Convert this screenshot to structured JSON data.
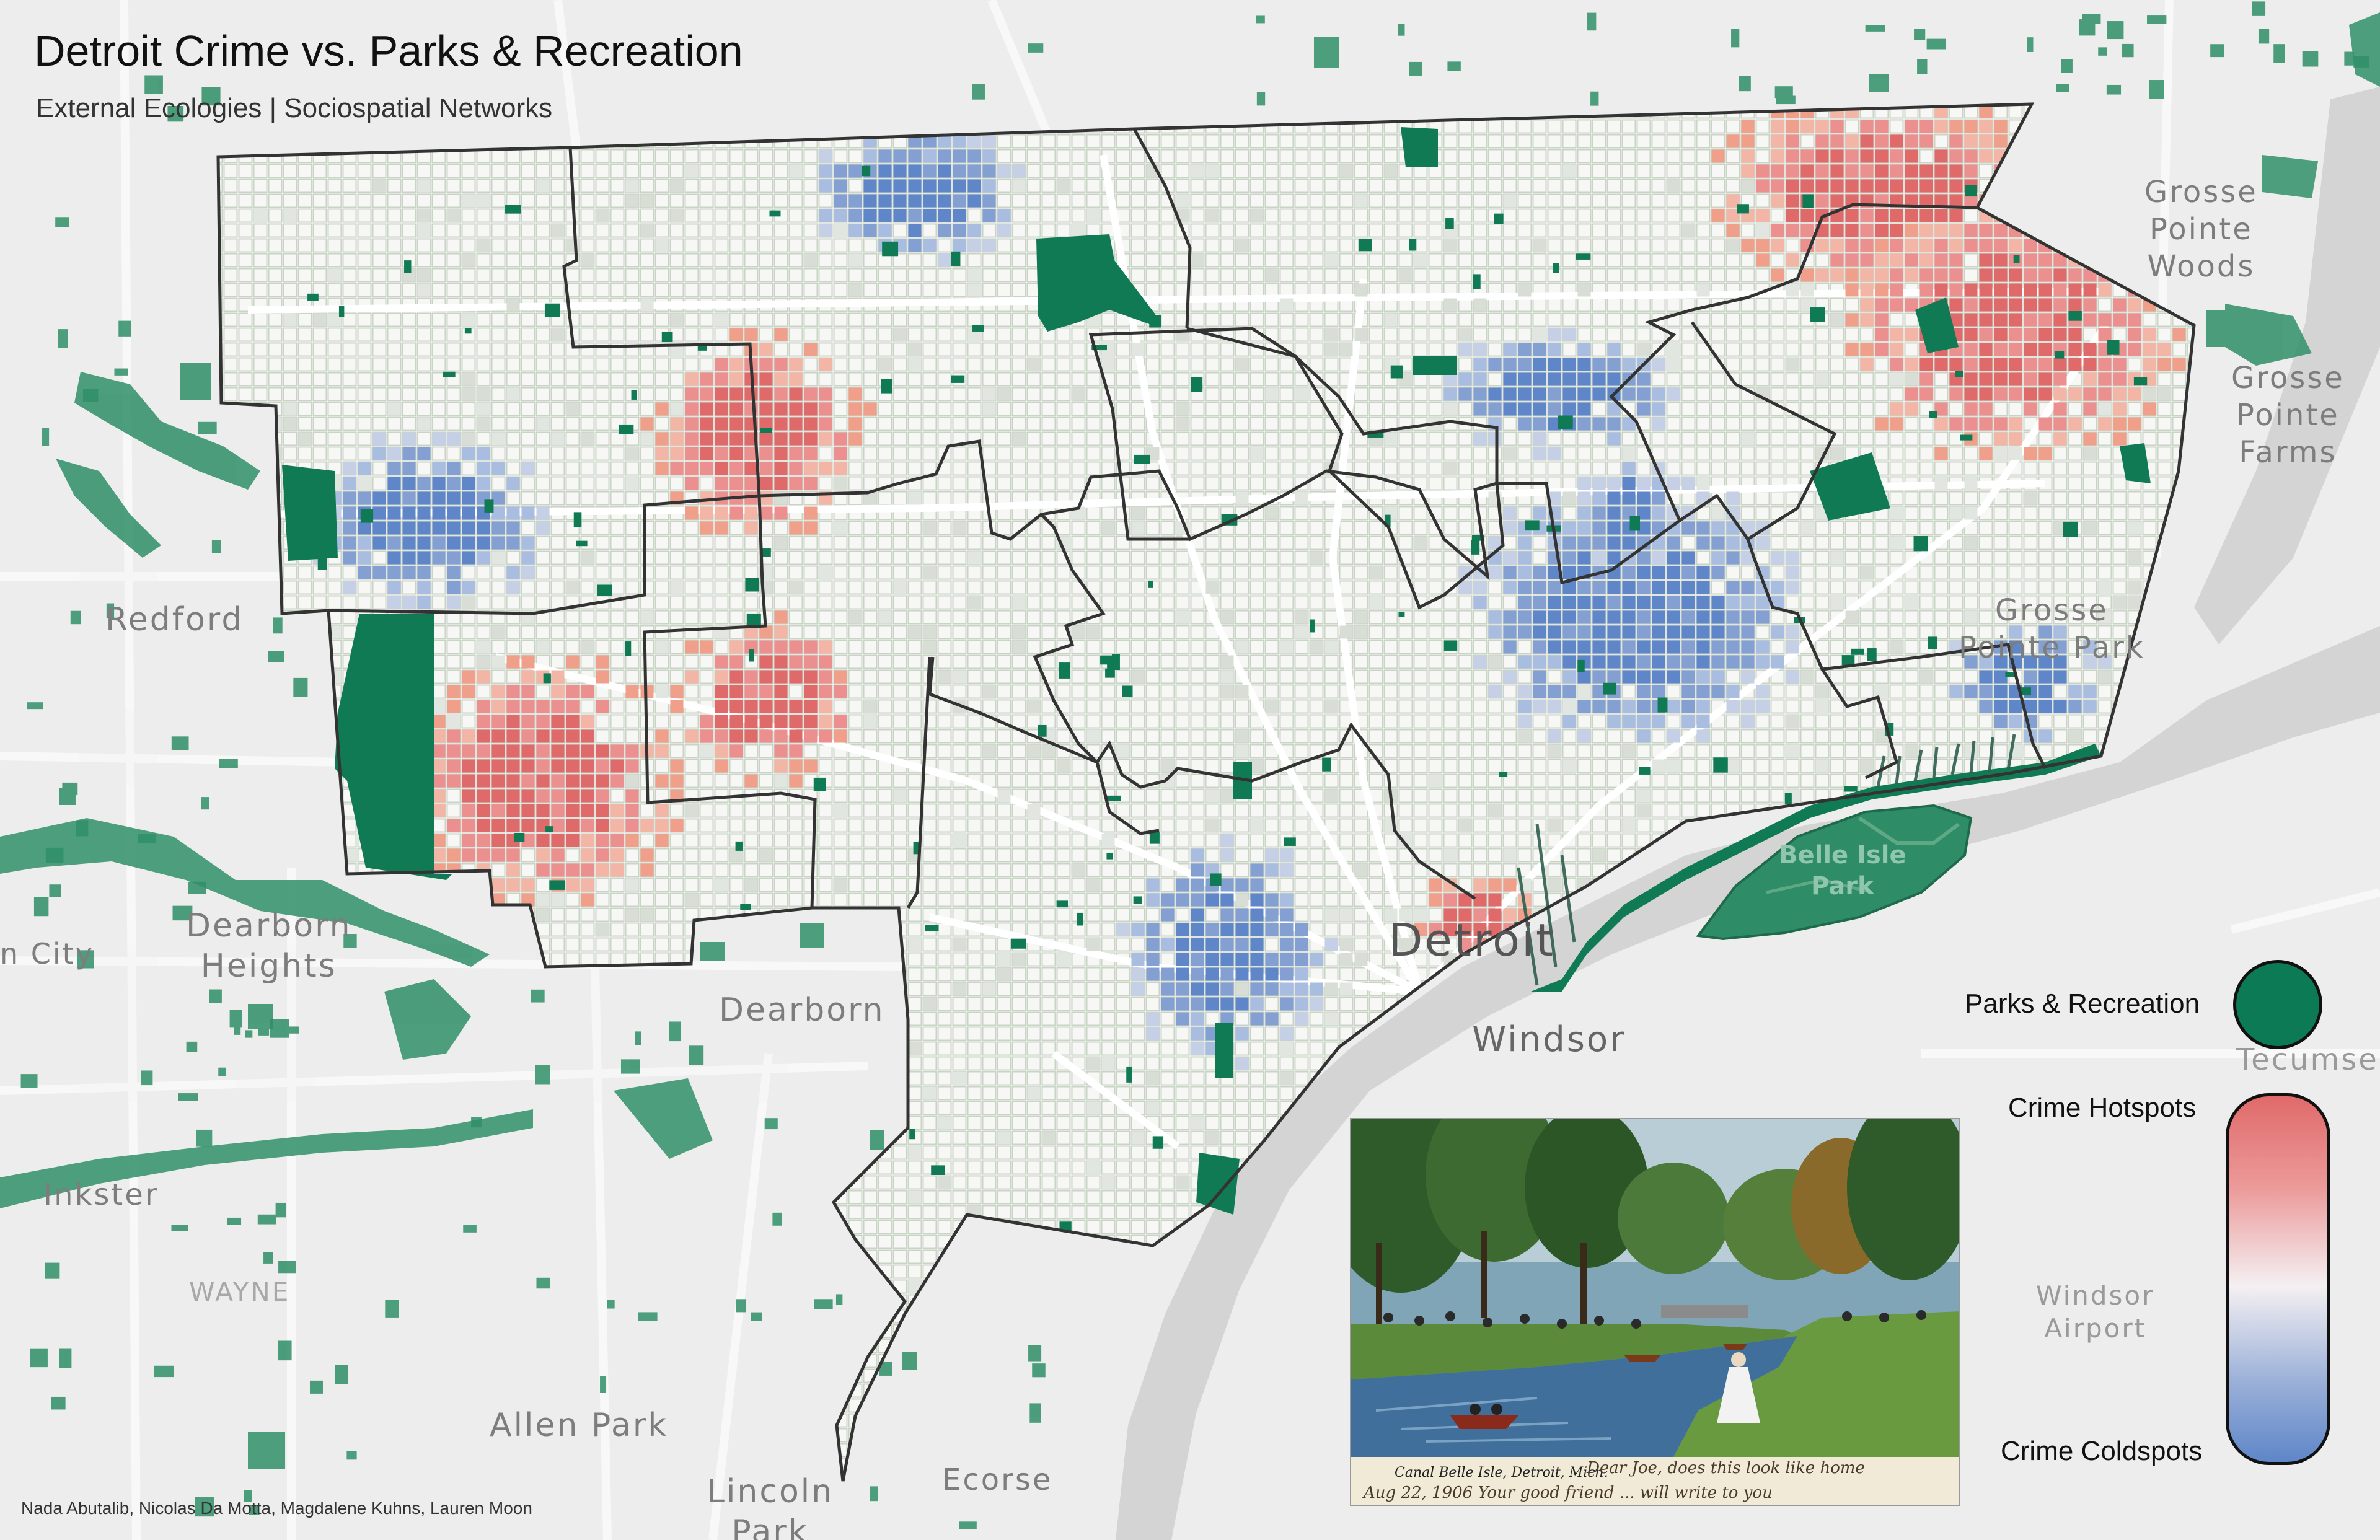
{
  "title": "Detroit Crime vs. Parks & Recreation",
  "subtitle": "External Ecologies | Sociospatial Networks",
  "credits": "Nada Abutalib, Nicolas Da Motta, Magdalene Kuhns, Lauren Moon",
  "places": {
    "redford": "Redford",
    "city_fragment": "n City",
    "dearborn_heights": [
      "Dearborn",
      "Heights"
    ],
    "dearborn": "Dearborn",
    "inkster": "Inkster",
    "wayne": "WAYNE",
    "allen_park": "Allen Park",
    "lincoln_park": [
      "Lincoln",
      "Park"
    ],
    "ecorse": "Ecorse",
    "detroit": "Detroit",
    "windsor": "Windsor",
    "windsor_airport": [
      "Windsor",
      "Airport"
    ],
    "grosse_pointe_woods": [
      "Grosse",
      "Pointe",
      "Woods"
    ],
    "grosse_pointe_farms": [
      "Grosse",
      "Pointe",
      "Farms"
    ],
    "grosse_pointe_park": [
      "Grosse",
      "Pointe Park"
    ],
    "belle_isle_park": [
      "Belle Isle",
      "Park"
    ],
    "tecumseh_fragment": "Tecumse"
  },
  "legend": {
    "parks": "Parks & Recreation",
    "hotspots": "Crime Hotspots",
    "coldspots": "Crime Coldspots",
    "parks_color": "#0b7a55",
    "hot_color": "#e06a6a",
    "cold_color": "#5f86c8"
  },
  "postcard": {
    "caption": "Canal Belle Isle, Detroit, Mich.",
    "handwriting_line1": "Dear Joe, does this look like home",
    "handwriting_line2": "Aug 22, 1906  Your good friend  ... will write to you"
  }
}
